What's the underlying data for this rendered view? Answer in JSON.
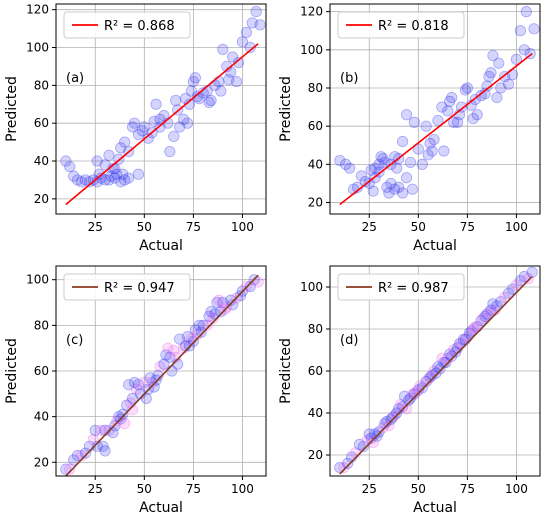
{
  "chart_data": [
    {
      "type": "scatter",
      "panel_label": "(a)",
      "xlabel": "Actual",
      "ylabel": "Predicted",
      "xlim": [
        5,
        112
      ],
      "ylim": [
        12,
        123
      ],
      "xticks": [
        25,
        50,
        75,
        100
      ],
      "yticks": [
        20,
        40,
        60,
        80,
        100,
        120
      ],
      "grid": true,
      "legend": {
        "label": "R² = 0.868",
        "placement": "top-left",
        "color": "#ff0000"
      },
      "fit_line": {
        "x": [
          10,
          108
        ],
        "y": [
          17,
          102
        ],
        "color": "#ff0000"
      },
      "point_colors": [
        "#3b3bf0"
      ],
      "points": [
        [
          10,
          40
        ],
        [
          12,
          37
        ],
        [
          14,
          32
        ],
        [
          16,
          30
        ],
        [
          18,
          29
        ],
        [
          20,
          30
        ],
        [
          22,
          29
        ],
        [
          24,
          30
        ],
        [
          26,
          29
        ],
        [
          27,
          33
        ],
        [
          28,
          31
        ],
        [
          30,
          30
        ],
        [
          32,
          30
        ],
        [
          33,
          32
        ],
        [
          35,
          31
        ],
        [
          36,
          33
        ],
        [
          38,
          29
        ],
        [
          39,
          33
        ],
        [
          40,
          30
        ],
        [
          42,
          31
        ],
        [
          26,
          40
        ],
        [
          30,
          38
        ],
        [
          35,
          36
        ],
        [
          38,
          47
        ],
        [
          40,
          50
        ],
        [
          42,
          45
        ],
        [
          44,
          58
        ],
        [
          45,
          60
        ],
        [
          47,
          54
        ],
        [
          49,
          56
        ],
        [
          50,
          58
        ],
        [
          52,
          52
        ],
        [
          54,
          55
        ],
        [
          55,
          61
        ],
        [
          56,
          70
        ],
        [
          58,
          62
        ],
        [
          60,
          64
        ],
        [
          62,
          60
        ],
        [
          63,
          45
        ],
        [
          65,
          53
        ],
        [
          66,
          72
        ],
        [
          67,
          67
        ],
        [
          68,
          58
        ],
        [
          70,
          62
        ],
        [
          71,
          73
        ],
        [
          72,
          60
        ],
        [
          73,
          70
        ],
        [
          74,
          77
        ],
        [
          75,
          82
        ],
        [
          76,
          84
        ],
        [
          77,
          74
        ],
        [
          78,
          73
        ],
        [
          80,
          76
        ],
        [
          82,
          77
        ],
        [
          84,
          72
        ],
        [
          86,
          80
        ],
        [
          88,
          82
        ],
        [
          89,
          77
        ],
        [
          90,
          99
        ],
        [
          92,
          90
        ],
        [
          94,
          87
        ],
        [
          95,
          95
        ],
        [
          97,
          82
        ],
        [
          98,
          92
        ],
        [
          100,
          103
        ],
        [
          102,
          108
        ],
        [
          104,
          100
        ],
        [
          105,
          113
        ],
        [
          107,
          119
        ],
        [
          109,
          112
        ],
        [
          32,
          43
        ],
        [
          34,
          36
        ],
        [
          37,
          41
        ],
        [
          47,
          33
        ],
        [
          58,
          58
        ],
        [
          83,
          71
        ],
        [
          93,
          83
        ]
      ]
    },
    {
      "type": "scatter",
      "panel_label": "(b)",
      "xlabel": "Actual",
      "ylabel": "Predicted",
      "xlim": [
        5,
        112
      ],
      "ylim": [
        14,
        124
      ],
      "xticks": [
        25,
        50,
        75,
        100
      ],
      "yticks": [
        20,
        40,
        60,
        80,
        100,
        120
      ],
      "grid": true,
      "legend": {
        "label": "R² = 0.818",
        "placement": "top-left",
        "color": "#ff0000"
      },
      "fit_line": {
        "x": [
          10,
          108
        ],
        "y": [
          19,
          98
        ],
        "color": "#ff0000"
      },
      "point_colors": [
        "#3b3bf0"
      ],
      "points": [
        [
          10,
          42
        ],
        [
          13,
          40
        ],
        [
          15,
          38
        ],
        [
          17,
          27
        ],
        [
          19,
          28
        ],
        [
          21,
          34
        ],
        [
          23,
          31
        ],
        [
          25,
          30
        ],
        [
          27,
          26
        ],
        [
          28,
          33
        ],
        [
          30,
          36
        ],
        [
          32,
          43
        ],
        [
          34,
          28
        ],
        [
          35,
          25
        ],
        [
          36,
          30
        ],
        [
          38,
          27
        ],
        [
          40,
          28
        ],
        [
          42,
          25
        ],
        [
          44,
          33
        ],
        [
          28,
          38
        ],
        [
          30,
          40
        ],
        [
          33,
          41
        ],
        [
          36,
          40
        ],
        [
          38,
          44
        ],
        [
          40,
          43
        ],
        [
          42,
          52
        ],
        [
          44,
          66
        ],
        [
          46,
          41
        ],
        [
          48,
          62
        ],
        [
          50,
          48
        ],
        [
          52,
          40
        ],
        [
          54,
          60
        ],
        [
          55,
          45
        ],
        [
          57,
          47
        ],
        [
          58,
          53
        ],
        [
          60,
          63
        ],
        [
          62,
          70
        ],
        [
          63,
          47
        ],
        [
          65,
          68
        ],
        [
          66,
          73
        ],
        [
          67,
          75
        ],
        [
          68,
          62
        ],
        [
          70,
          62
        ],
        [
          71,
          66
        ],
        [
          72,
          70
        ],
        [
          74,
          79
        ],
        [
          75,
          80
        ],
        [
          77,
          71
        ],
        [
          78,
          64
        ],
        [
          80,
          66
        ],
        [
          82,
          76
        ],
        [
          84,
          77
        ],
        [
          85,
          81
        ],
        [
          86,
          86
        ],
        [
          87,
          88
        ],
        [
          88,
          97
        ],
        [
          90,
          75
        ],
        [
          92,
          80
        ],
        [
          94,
          86
        ],
        [
          96,
          82
        ],
        [
          98,
          87
        ],
        [
          100,
          95
        ],
        [
          102,
          110
        ],
        [
          104,
          100
        ],
        [
          105,
          120
        ],
        [
          107,
          98
        ],
        [
          109,
          111
        ],
        [
          26,
          37
        ],
        [
          31,
          44
        ],
        [
          39,
          38
        ],
        [
          47,
          27
        ],
        [
          56,
          51
        ],
        [
          79,
          74
        ],
        [
          91,
          93
        ]
      ]
    },
    {
      "type": "scatter",
      "panel_label": "(c)",
      "xlabel": "Actual",
      "ylabel": "Predicted",
      "xlim": [
        5,
        112
      ],
      "ylim": [
        14,
        106
      ],
      "xticks": [
        25,
        50,
        75,
        100
      ],
      "yticks": [
        20,
        40,
        60,
        80,
        100
      ],
      "grid": true,
      "legend": {
        "label": "R² = 0.947",
        "placement": "top-left",
        "color": "#8b3a1e"
      },
      "fit_line": {
        "x": [
          10,
          108
        ],
        "y": [
          14,
          102
        ],
        "color": "#8b3a1e"
      },
      "point_colors": [
        "#3b3bf0",
        "#ee66ee"
      ],
      "points": [
        [
          10,
          17
        ],
        [
          12,
          17
        ],
        [
          14,
          21
        ],
        [
          16,
          23
        ],
        [
          18,
          23
        ],
        [
          20,
          24
        ],
        [
          22,
          27
        ],
        [
          24,
          30
        ],
        [
          25,
          34
        ],
        [
          26,
          27
        ],
        [
          28,
          34
        ],
        [
          29,
          27
        ],
        [
          30,
          25
        ],
        [
          32,
          34
        ],
        [
          34,
          33
        ],
        [
          35,
          36
        ],
        [
          36,
          38
        ],
        [
          38,
          39
        ],
        [
          39,
          41
        ],
        [
          40,
          37
        ],
        [
          41,
          45
        ],
        [
          42,
          54
        ],
        [
          43,
          46
        ],
        [
          44,
          48
        ],
        [
          45,
          55
        ],
        [
          46,
          52
        ],
        [
          47,
          54
        ],
        [
          48,
          50
        ],
        [
          50,
          55
        ],
        [
          51,
          48
        ],
        [
          52,
          52
        ],
        [
          54,
          55
        ],
        [
          55,
          53
        ],
        [
          56,
          56
        ],
        [
          58,
          62
        ],
        [
          60,
          63
        ],
        [
          61,
          67
        ],
        [
          62,
          70
        ],
        [
          63,
          66
        ],
        [
          64,
          60
        ],
        [
          66,
          66
        ],
        [
          67,
          63
        ],
        [
          68,
          74
        ],
        [
          70,
          70
        ],
        [
          72,
          75
        ],
        [
          73,
          71
        ],
        [
          74,
          74
        ],
        [
          75,
          73
        ],
        [
          76,
          78
        ],
        [
          77,
          76
        ],
        [
          78,
          80
        ],
        [
          80,
          80
        ],
        [
          82,
          80
        ],
        [
          83,
          84
        ],
        [
          84,
          86
        ],
        [
          85,
          83
        ],
        [
          86,
          85
        ],
        [
          87,
          90
        ],
        [
          88,
          91
        ],
        [
          89,
          86
        ],
        [
          90,
          90
        ],
        [
          92,
          88
        ],
        [
          94,
          91
        ],
        [
          95,
          89
        ],
        [
          97,
          92
        ],
        [
          99,
          93
        ],
        [
          100,
          95
        ],
        [
          102,
          97
        ],
        [
          104,
          97
        ],
        [
          106,
          100
        ],
        [
          108,
          99
        ],
        [
          30,
          34
        ],
        [
          37,
          40
        ],
        [
          44,
          43
        ],
        [
          53,
          57
        ],
        [
          57,
          58
        ],
        [
          65,
          69
        ],
        [
          71,
          71
        ],
        [
          79,
          77
        ],
        [
          91,
          87
        ]
      ]
    },
    {
      "type": "scatter",
      "panel_label": "(d)",
      "xlabel": "Actual",
      "ylabel": "Predicted",
      "xlim": [
        5,
        112
      ],
      "ylim": [
        10,
        110
      ],
      "xticks": [
        25,
        50,
        75,
        100
      ],
      "yticks": [
        20,
        40,
        60,
        80,
        100
      ],
      "grid": true,
      "legend": {
        "label": "R² = 0.987",
        "placement": "top-left",
        "color": "#8b3a1e"
      },
      "fit_line": {
        "x": [
          10,
          108
        ],
        "y": [
          11,
          105
        ],
        "color": "#8b3a1e"
      },
      "point_colors": [
        "#3b3bf0",
        "#ee66ee"
      ],
      "points": [
        [
          10,
          14
        ],
        [
          12,
          14
        ],
        [
          14,
          16
        ],
        [
          16,
          19
        ],
        [
          18,
          21
        ],
        [
          20,
          25
        ],
        [
          22,
          24
        ],
        [
          24,
          27
        ],
        [
          25,
          30
        ],
        [
          26,
          28
        ],
        [
          27,
          26
        ],
        [
          28,
          30
        ],
        [
          30,
          31
        ],
        [
          32,
          33
        ],
        [
          33,
          35
        ],
        [
          34,
          36
        ],
        [
          35,
          34
        ],
        [
          36,
          37
        ],
        [
          37,
          38
        ],
        [
          38,
          39
        ],
        [
          39,
          40
        ],
        [
          40,
          42
        ],
        [
          41,
          44
        ],
        [
          42,
          43
        ],
        [
          43,
          48
        ],
        [
          44,
          42
        ],
        [
          45,
          46
        ],
        [
          46,
          47
        ],
        [
          47,
          49
        ],
        [
          48,
          49
        ],
        [
          50,
          51
        ],
        [
          51,
          53
        ],
        [
          52,
          52
        ],
        [
          54,
          55
        ],
        [
          55,
          56
        ],
        [
          56,
          57
        ],
        [
          57,
          58
        ],
        [
          58,
          60
        ],
        [
          60,
          62
        ],
        [
          61,
          61
        ],
        [
          62,
          66
        ],
        [
          63,
          64
        ],
        [
          64,
          64
        ],
        [
          65,
          66
        ],
        [
          66,
          68
        ],
        [
          67,
          67
        ],
        [
          68,
          70
        ],
        [
          70,
          71
        ],
        [
          71,
          73
        ],
        [
          72,
          73
        ],
        [
          73,
          75
        ],
        [
          74,
          75
        ],
        [
          75,
          76
        ],
        [
          76,
          78
        ],
        [
          77,
          79
        ],
        [
          78,
          80
        ],
        [
          80,
          81
        ],
        [
          82,
          84
        ],
        [
          83,
          85
        ],
        [
          84,
          86
        ],
        [
          85,
          87
        ],
        [
          86,
          88
        ],
        [
          87,
          89
        ],
        [
          88,
          92
        ],
        [
          89,
          89
        ],
        [
          90,
          91
        ],
        [
          92,
          93
        ],
        [
          94,
          95
        ],
        [
          96,
          97
        ],
        [
          98,
          99
        ],
        [
          100,
          101
        ],
        [
          102,
          103
        ],
        [
          104,
          105
        ],
        [
          106,
          104
        ],
        [
          108,
          107
        ],
        [
          29,
          29
        ],
        [
          49,
          50
        ],
        [
          59,
          59
        ],
        [
          69,
          69
        ],
        [
          79,
          81
        ]
      ]
    }
  ]
}
